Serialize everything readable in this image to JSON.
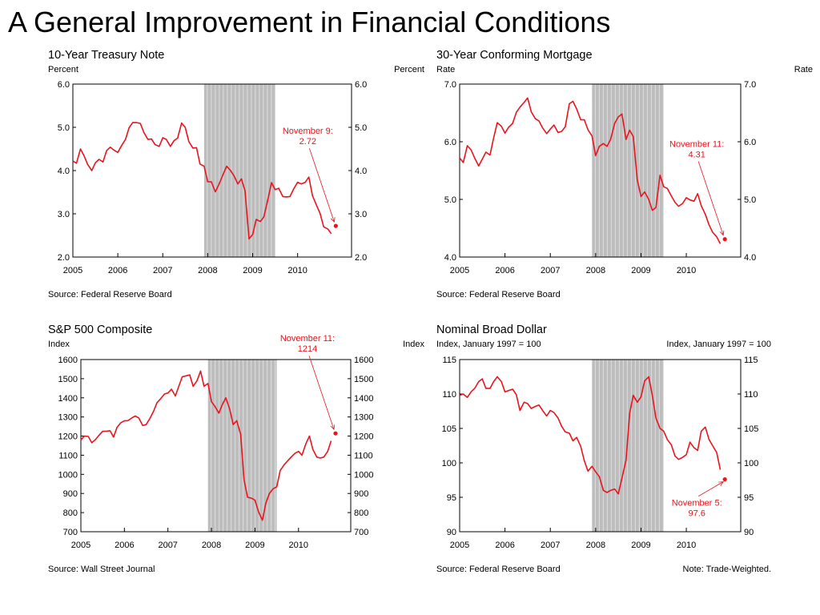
{
  "title": "A General Improvement in Financial Conditions",
  "colors": {
    "series": "#e8141e",
    "recession": "#bdbdbd",
    "recession_lines": "#e6e6e6",
    "annotation": "#e8141e"
  },
  "chart_data": [
    {
      "type": "line",
      "title": "10-Year Treasury Note",
      "ylabel_left": "Percent",
      "ylabel_right": "Percent",
      "ylim": [
        2.0,
        6.0
      ],
      "yticks": [
        "2.0",
        "3.0",
        "4.0",
        "5.0",
        "6.0"
      ],
      "ytick_values": [
        2.0,
        3.0,
        4.0,
        5.0,
        6.0
      ],
      "xlim": [
        2005.0,
        2011.2
      ],
      "xticks": [
        "2005",
        "2006",
        "2007",
        "2008",
        "2009",
        "2010"
      ],
      "xtick_values": [
        2005,
        2006,
        2007,
        2008,
        2009,
        2010
      ],
      "recession": [
        2007.92,
        2009.5
      ],
      "series": [
        {
          "x": [
            2005.0,
            2005.08,
            2005.17,
            2005.25,
            2005.33,
            2005.42,
            2005.5,
            2005.58,
            2005.67,
            2005.75,
            2005.83,
            2005.92,
            2006.0,
            2006.08,
            2006.17,
            2006.25,
            2006.33,
            2006.42,
            2006.5,
            2006.58,
            2006.67,
            2006.75,
            2006.83,
            2006.92,
            2007.0,
            2007.08,
            2007.17,
            2007.25,
            2007.33,
            2007.42,
            2007.5,
            2007.58,
            2007.67,
            2007.75,
            2007.83,
            2007.92,
            2008.0,
            2008.08,
            2008.17,
            2008.25,
            2008.33,
            2008.42,
            2008.5,
            2008.58,
            2008.67,
            2008.75,
            2008.83,
            2008.92,
            2009.0,
            2009.08,
            2009.17,
            2009.25,
            2009.33,
            2009.42,
            2009.5,
            2009.58,
            2009.67,
            2009.75,
            2009.83,
            2009.92,
            2010.0,
            2010.08,
            2010.17,
            2010.25,
            2010.33,
            2010.42,
            2010.5,
            2010.58,
            2010.67,
            2010.75
          ],
          "y": [
            4.22,
            4.17,
            4.5,
            4.34,
            4.14,
            4.0,
            4.18,
            4.26,
            4.2,
            4.46,
            4.54,
            4.47,
            4.42,
            4.57,
            4.72,
            4.99,
            5.11,
            5.11,
            5.09,
            4.88,
            4.72,
            4.73,
            4.6,
            4.56,
            4.76,
            4.72,
            4.56,
            4.69,
            4.75,
            5.1,
            5.0,
            4.67,
            4.52,
            4.53,
            4.15,
            4.1,
            3.74,
            3.74,
            3.51,
            3.68,
            3.88,
            4.1,
            4.01,
            3.89,
            3.69,
            3.81,
            3.53,
            2.42,
            2.52,
            2.87,
            2.82,
            2.93,
            3.29,
            3.72,
            3.56,
            3.59,
            3.4,
            3.39,
            3.4,
            3.59,
            3.73,
            3.69,
            3.73,
            3.85,
            3.42,
            3.2,
            3.01,
            2.7,
            2.65,
            2.54
          ]
        }
      ],
      "marker": {
        "x": 2010.85,
        "y": 2.72
      },
      "annotation": [
        "November 9:",
        "2.72"
      ],
      "source": "Source: Federal Reserve Board"
    },
    {
      "type": "line",
      "title": "30-Year Conforming Mortgage",
      "ylabel_left": "Rate",
      "ylabel_right": "Rate",
      "ylim": [
        4.0,
        7.0
      ],
      "yticks": [
        "4.0",
        "5.0",
        "6.0",
        "7.0"
      ],
      "ytick_values": [
        4.0,
        5.0,
        6.0,
        7.0
      ],
      "xlim": [
        2005.0,
        2011.2
      ],
      "xticks": [
        "2005",
        "2006",
        "2007",
        "2008",
        "2009",
        "2010"
      ],
      "xtick_values": [
        2005,
        2006,
        2007,
        2008,
        2009,
        2010
      ],
      "recession": [
        2007.92,
        2009.5
      ],
      "series": [
        {
          "x": [
            2005.0,
            2005.08,
            2005.17,
            2005.25,
            2005.33,
            2005.42,
            2005.5,
            2005.58,
            2005.67,
            2005.75,
            2005.83,
            2005.92,
            2006.0,
            2006.08,
            2006.17,
            2006.25,
            2006.33,
            2006.42,
            2006.5,
            2006.58,
            2006.67,
            2006.75,
            2006.83,
            2006.92,
            2007.0,
            2007.08,
            2007.17,
            2007.25,
            2007.33,
            2007.42,
            2007.5,
            2007.58,
            2007.67,
            2007.75,
            2007.83,
            2007.92,
            2008.0,
            2008.08,
            2008.17,
            2008.25,
            2008.33,
            2008.42,
            2008.5,
            2008.58,
            2008.67,
            2008.75,
            2008.83,
            2008.92,
            2009.0,
            2009.08,
            2009.17,
            2009.25,
            2009.33,
            2009.42,
            2009.5,
            2009.58,
            2009.67,
            2009.75,
            2009.83,
            2009.92,
            2010.0,
            2010.08,
            2010.17,
            2010.25,
            2010.33,
            2010.42,
            2010.5,
            2010.58,
            2010.67,
            2010.75
          ],
          "y": [
            5.72,
            5.64,
            5.93,
            5.86,
            5.72,
            5.58,
            5.7,
            5.82,
            5.77,
            6.07,
            6.33,
            6.27,
            6.15,
            6.25,
            6.32,
            6.51,
            6.6,
            6.68,
            6.76,
            6.52,
            6.4,
            6.36,
            6.24,
            6.14,
            6.22,
            6.29,
            6.16,
            6.18,
            6.26,
            6.66,
            6.7,
            6.57,
            6.38,
            6.38,
            6.21,
            6.1,
            5.76,
            5.92,
            5.97,
            5.92,
            6.04,
            6.32,
            6.43,
            6.48,
            6.04,
            6.2,
            6.09,
            5.33,
            5.05,
            5.13,
            5.0,
            4.81,
            4.86,
            5.42,
            5.22,
            5.19,
            5.06,
            4.95,
            4.88,
            4.93,
            5.03,
            4.99,
            4.97,
            5.1,
            4.89,
            4.74,
            4.56,
            4.43,
            4.35,
            4.23
          ]
        }
      ],
      "marker": {
        "x": 2010.85,
        "y": 4.31
      },
      "annotation": [
        "November 11:",
        "4.31"
      ],
      "source": "Source: Federal Reserve Board"
    },
    {
      "type": "line",
      "title": "S&P 500 Composite",
      "ylabel_left": "Index",
      "ylabel_right": "Index",
      "ylim": [
        700,
        1600
      ],
      "yticks": [
        "700",
        "800",
        "900",
        "1000",
        "1100",
        "1200",
        "1300",
        "1400",
        "1500",
        "1600"
      ],
      "ytick_values": [
        700,
        800,
        900,
        1000,
        1100,
        1200,
        1300,
        1400,
        1500,
        1600
      ],
      "xlim": [
        2005.0,
        2011.2
      ],
      "xticks": [
        "2005",
        "2006",
        "2007",
        "2008",
        "2009",
        "2010"
      ],
      "xtick_values": [
        2005,
        2006,
        2007,
        2008,
        2009,
        2010
      ],
      "recession": [
        2007.92,
        2009.5
      ],
      "series": [
        {
          "x": [
            2005.0,
            2005.08,
            2005.17,
            2005.25,
            2005.33,
            2005.42,
            2005.5,
            2005.58,
            2005.67,
            2005.75,
            2005.83,
            2005.92,
            2006.0,
            2006.08,
            2006.17,
            2006.25,
            2006.33,
            2006.42,
            2006.5,
            2006.58,
            2006.67,
            2006.75,
            2006.83,
            2006.92,
            2007.0,
            2007.08,
            2007.17,
            2007.25,
            2007.33,
            2007.42,
            2007.5,
            2007.58,
            2007.67,
            2007.75,
            2007.83,
            2007.92,
            2008.0,
            2008.08,
            2008.17,
            2008.25,
            2008.33,
            2008.42,
            2008.5,
            2008.58,
            2008.67,
            2008.75,
            2008.83,
            2008.92,
            2009.0,
            2009.08,
            2009.17,
            2009.25,
            2009.33,
            2009.42,
            2009.5,
            2009.58,
            2009.67,
            2009.75,
            2009.83,
            2009.92,
            2010.0,
            2010.08,
            2010.17,
            2010.25,
            2010.33,
            2010.42,
            2010.5,
            2010.58,
            2010.67,
            2010.75
          ],
          "y": [
            1180,
            1200,
            1198,
            1165,
            1180,
            1205,
            1225,
            1225,
            1228,
            1195,
            1245,
            1270,
            1280,
            1280,
            1295,
            1305,
            1295,
            1255,
            1260,
            1290,
            1330,
            1375,
            1395,
            1420,
            1425,
            1445,
            1410,
            1460,
            1510,
            1515,
            1520,
            1460,
            1490,
            1540,
            1460,
            1475,
            1380,
            1355,
            1320,
            1365,
            1400,
            1340,
            1260,
            1280,
            1210,
            970,
            880,
            875,
            865,
            805,
            760,
            850,
            900,
            925,
            935,
            1020,
            1050,
            1070,
            1090,
            1110,
            1120,
            1100,
            1160,
            1200,
            1130,
            1090,
            1085,
            1090,
            1120,
            1175
          ]
        }
      ],
      "marker": {
        "x": 2010.85,
        "y": 1214
      },
      "annotation": [
        "November 11:",
        "1214"
      ],
      "source": "Source: Wall Street Journal"
    },
    {
      "type": "line",
      "title": "Nominal Broad Dollar",
      "ylabel_left": "Index, January 1997 = 100",
      "ylabel_right": "Index, January 1997 = 100",
      "ylim": [
        90,
        115
      ],
      "yticks": [
        "90",
        "95",
        "100",
        "105",
        "110",
        "115"
      ],
      "ytick_values": [
        90,
        95,
        100,
        105,
        110,
        115
      ],
      "xlim": [
        2005.0,
        2011.2
      ],
      "xticks": [
        "2005",
        "2006",
        "2007",
        "2008",
        "2009",
        "2010"
      ],
      "xtick_values": [
        2005,
        2006,
        2007,
        2008,
        2009,
        2010
      ],
      "recession": [
        2007.92,
        2009.5
      ],
      "series": [
        {
          "x": [
            2005.0,
            2005.08,
            2005.17,
            2005.25,
            2005.33,
            2005.42,
            2005.5,
            2005.58,
            2005.67,
            2005.75,
            2005.83,
            2005.92,
            2006.0,
            2006.08,
            2006.17,
            2006.25,
            2006.33,
            2006.42,
            2006.5,
            2006.58,
            2006.67,
            2006.75,
            2006.83,
            2006.92,
            2007.0,
            2007.08,
            2007.17,
            2007.25,
            2007.33,
            2007.42,
            2007.5,
            2007.58,
            2007.67,
            2007.75,
            2007.83,
            2007.92,
            2008.0,
            2008.08,
            2008.17,
            2008.25,
            2008.33,
            2008.42,
            2008.5,
            2008.58,
            2008.67,
            2008.75,
            2008.83,
            2008.92,
            2009.0,
            2009.08,
            2009.17,
            2009.25,
            2009.33,
            2009.42,
            2009.5,
            2009.58,
            2009.67,
            2009.75,
            2009.83,
            2009.92,
            2010.0,
            2010.08,
            2010.17,
            2010.25,
            2010.33,
            2010.42,
            2010.5,
            2010.58,
            2010.67,
            2010.75
          ],
          "y": [
            109.8,
            110.0,
            109.5,
            110.3,
            110.8,
            111.8,
            112.2,
            110.8,
            110.8,
            111.8,
            112.5,
            111.8,
            110.3,
            110.5,
            110.7,
            109.9,
            107.6,
            108.8,
            108.6,
            107.9,
            108.2,
            108.4,
            107.6,
            106.8,
            107.6,
            107.3,
            106.5,
            105.3,
            104.5,
            104.3,
            103.2,
            103.7,
            102.4,
            100.3,
            98.8,
            99.5,
            98.7,
            98.0,
            96.0,
            95.7,
            96.0,
            96.2,
            95.5,
            97.8,
            100.4,
            107.2,
            109.8,
            108.8,
            109.6,
            111.9,
            112.5,
            109.8,
            106.5,
            105.0,
            104.6,
            103.4,
            102.6,
            101.0,
            100.5,
            100.8,
            101.2,
            103.0,
            102.2,
            101.8,
            104.6,
            105.2,
            103.4,
            102.5,
            101.5,
            99.0
          ]
        }
      ],
      "marker": {
        "x": 2010.85,
        "y": 97.6
      },
      "annotation": [
        "November 5:",
        "97.6"
      ],
      "annotation_below": true,
      "source": "Source: Federal Reserve Board",
      "note": "Note:  Trade-Weighted."
    }
  ]
}
